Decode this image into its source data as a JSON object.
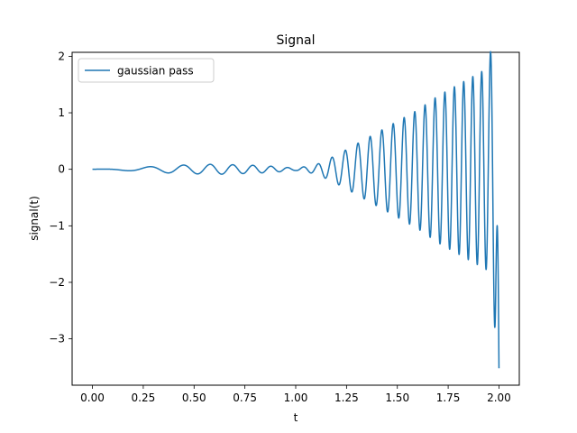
{
  "chart_data": {
    "type": "line",
    "title": "Signal",
    "xlabel": "t",
    "ylabel": "signal(t)",
    "xlim": [
      -0.1,
      2.1
    ],
    "ylim": [
      -3.82,
      2.07
    ],
    "x_ticks": [
      0.0,
      0.25,
      0.5,
      0.75,
      1.0,
      1.25,
      1.5,
      1.75,
      2.0
    ],
    "x_tick_labels": [
      "0.00",
      "0.25",
      "0.50",
      "0.75",
      "1.00",
      "1.25",
      "1.50",
      "1.75",
      "2.00"
    ],
    "y_ticks": [
      -3,
      -2,
      -1,
      0,
      1,
      2
    ],
    "y_tick_labels": [
      "−3",
      "−2",
      "−1",
      "0",
      "1",
      "2"
    ],
    "grid": false,
    "legend_placement": "top-left",
    "series": [
      {
        "name": "gaussian pass",
        "color": "#1f77b4",
        "x_start": 0.0,
        "x_end": 2.0,
        "description_points": {
          "t": [
            0.0,
            0.1,
            0.2,
            0.3,
            0.4,
            0.5,
            0.6,
            0.7,
            0.8,
            0.9,
            1.0,
            1.1,
            1.2,
            1.3,
            1.4,
            1.5,
            1.6,
            1.7,
            1.8,
            1.9,
            1.95,
            2.0
          ],
          "envelope": [
            0.0,
            0.01,
            0.03,
            0.05,
            0.07,
            0.08,
            0.09,
            0.08,
            0.07,
            0.05,
            0.02,
            0.08,
            0.25,
            0.45,
            0.65,
            0.85,
            1.05,
            1.3,
            1.5,
            1.7,
            1.8,
            3.5
          ]
        }
      }
    ]
  }
}
